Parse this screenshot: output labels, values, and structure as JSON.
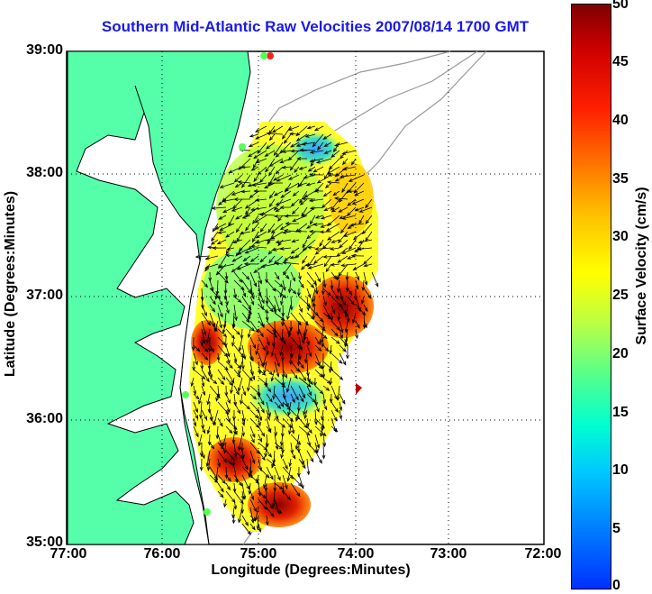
{
  "title": "Southern Mid-Atlantic Raw Velocities 2007/08/14 1700 GMT",
  "xlabel": "Longitude (Degrees:Minutes)",
  "ylabel": "Latitude (Degrees:Minutes)",
  "colorbar_label": "Surface Velocity (cm/s)",
  "x_ticks": [
    "77:00",
    "76:00",
    "75:00",
    "74:00",
    "73:00",
    "72:00"
  ],
  "y_ticks": [
    "39:00",
    "38:00",
    "37:00",
    "36:00",
    "35:00"
  ],
  "colorbar_ticks": [
    "50",
    "45",
    "40",
    "35",
    "30",
    "25",
    "20",
    "15",
    "10",
    "5",
    "0"
  ],
  "colors": {
    "land": "#55ffaa",
    "coast": "#000000",
    "title": "#1a1ae6",
    "bathymetry": "#999999"
  }
}
